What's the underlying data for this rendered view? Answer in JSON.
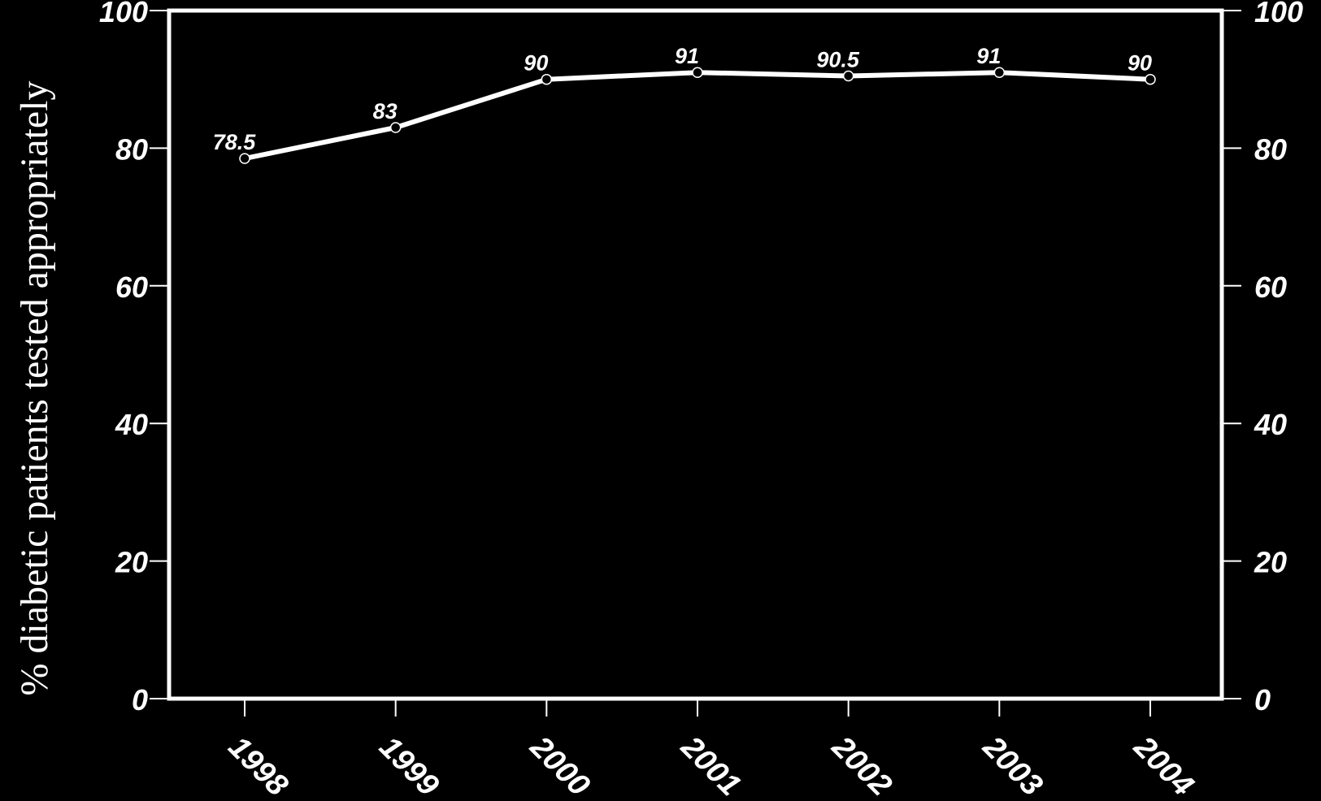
{
  "chart_data": {
    "type": "line",
    "title": "",
    "xlabel": "",
    "ylabel": "% diabetic patients tested appropriately",
    "categories": [
      "1998",
      "1999",
      "2000",
      "2001",
      "2002",
      "2003",
      "2004"
    ],
    "series": [
      {
        "values": [
          78.5,
          83,
          90,
          91,
          90.5,
          91,
          90
        ],
        "labels": [
          "78.5",
          "83",
          "90",
          "91",
          "90.5",
          "91",
          "90"
        ]
      }
    ],
    "ylim": [
      0,
      100
    ],
    "yticks": [
      "0",
      "20",
      "40",
      "60",
      "80",
      "100"
    ],
    "y_axis_mirrored_right": true,
    "grid": false,
    "legend": "none",
    "colors": {
      "background": "#000000",
      "foreground": "#ffffff"
    }
  }
}
